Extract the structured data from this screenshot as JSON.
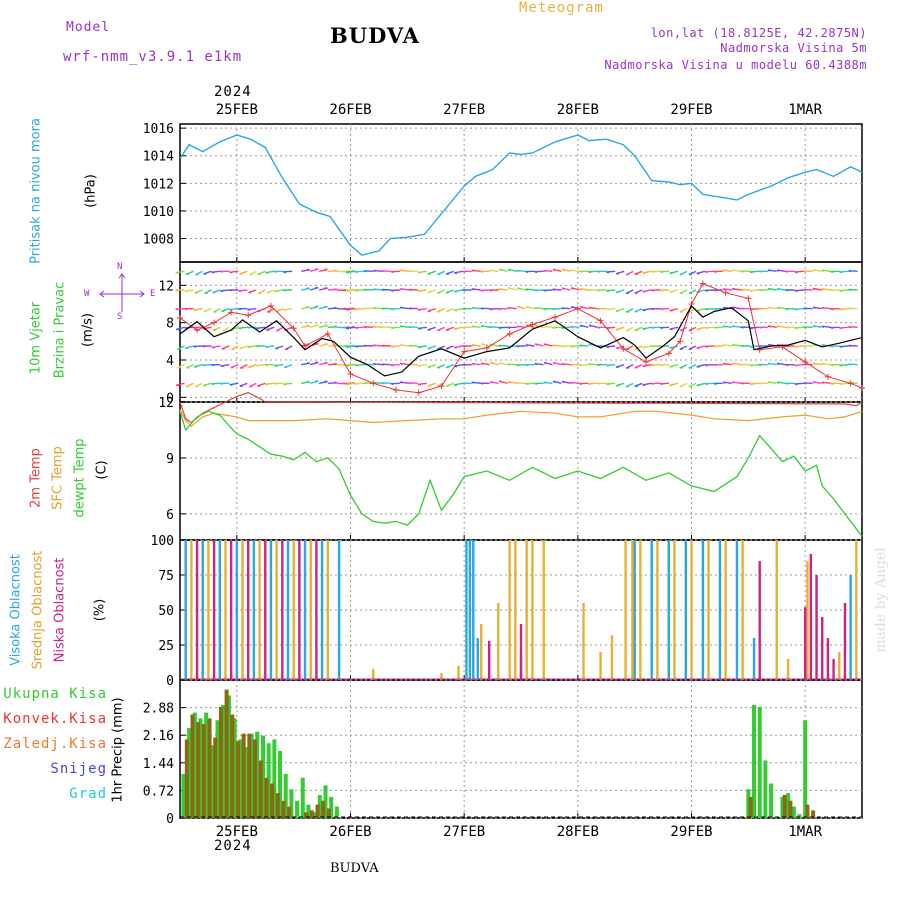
{
  "header": {
    "title": "BUDVA",
    "model_label": "Model",
    "model_name": "wrf-nmm_v3.9.1  e1km",
    "meteogram": "Meteogram",
    "lonlat": "lon,lat (18.8125E, 42.2875N)",
    "elev": "Nadmorska Visina 5m",
    "elev_model": "Nadmorska Visina u modelu 60.4388m",
    "year_top": "2024",
    "year_bottom": "2024",
    "footer": "BUDVA",
    "credit": "made by Angel"
  },
  "panel_labels": {
    "pressure": [
      "Pritisak na nivou mora",
      "(hPa)"
    ],
    "wind": [
      "10m Vjetar",
      "Brzina i Pravac",
      "(m/s)"
    ],
    "compass": {
      "n": "N",
      "s": "S",
      "w": "W",
      "e": "E"
    },
    "temp": [
      "2m Temp",
      "SFC Temp",
      "dewpt Temp",
      "(C)"
    ],
    "cloud": [
      "Visoka Oblacnost",
      "Srednja Oblacnost",
      "Niska Oblacnost",
      "(%)"
    ],
    "precip_axis": "1hr Precip (mm)",
    "precip_legend": [
      "Ukupna Kisa",
      "Konvek.Kisa",
      "Zaledj.Kisa",
      "Snijeg",
      "Grad"
    ]
  },
  "colors": {
    "pressure": "#29a8e0",
    "wind_speed": "#000000",
    "wind_gust": "#ee3333",
    "temp_2m": "#e84040",
    "temp_sfc": "#e8a030",
    "dewpoint": "#33cc33",
    "cloud_high": "#29a8e0",
    "cloud_mid": "#e8b030",
    "cloud_low": "#cc2288",
    "precip_total": "#33cc33",
    "precip_conv": "#8b6914",
    "title_purple": "#9933cc",
    "meteogram_orange": "#e8b040"
  },
  "chart_data": [
    {
      "type": "line",
      "id": "pressure",
      "x_unit": "days since 25FEB 00UTC",
      "x_ticks": [
        "25FEB",
        "26FEB",
        "27FEB",
        "28FEB",
        "29FEB",
        "1MAR"
      ],
      "xlim": [
        -0.5,
        5.5
      ],
      "ylim": [
        1006.3,
        1016.3
      ],
      "y_ticks": [
        1008,
        1010,
        1012,
        1014,
        1016
      ],
      "grid": true,
      "series": [
        {
          "name": "Pritisak na nivou mora",
          "x": [
            -0.5,
            -0.42,
            -0.3,
            -0.15,
            0.0,
            0.12,
            0.25,
            0.4,
            0.55,
            0.7,
            0.82,
            1.0,
            1.1,
            1.25,
            1.35,
            1.5,
            1.65,
            1.8,
            2.0,
            2.1,
            2.25,
            2.4,
            2.5,
            2.6,
            2.8,
            3.0,
            3.1,
            3.25,
            3.4,
            3.5,
            3.65,
            3.8,
            3.9,
            4.0,
            4.1,
            4.25,
            4.4,
            4.5,
            4.7,
            4.85,
            5.0,
            5.1,
            5.25,
            5.4,
            5.5
          ],
          "y": [
            1013.8,
            1014.8,
            1014.3,
            1015.0,
            1015.5,
            1015.2,
            1014.6,
            1012.4,
            1010.5,
            1009.9,
            1009.6,
            1007.5,
            1006.8,
            1007.1,
            1008.0,
            1008.1,
            1008.3,
            1009.8,
            1011.8,
            1012.5,
            1013.0,
            1014.2,
            1014.1,
            1014.2,
            1015.0,
            1015.5,
            1015.1,
            1015.2,
            1014.8,
            1014.0,
            1012.2,
            1012.1,
            1011.9,
            1012.0,
            1011.2,
            1011.0,
            1010.8,
            1011.2,
            1011.8,
            1012.4,
            1012.8,
            1013.0,
            1012.5,
            1013.2,
            1012.8
          ]
        }
      ]
    },
    {
      "type": "line",
      "id": "wind",
      "xlim": [
        -0.5,
        5.5
      ],
      "ylim": [
        -0.5,
        14.5
      ],
      "y_ticks": [
        0,
        4,
        8,
        12
      ],
      "grid": true,
      "arrow_rows": [
        1.5,
        3.5,
        5.5,
        7.5,
        9.5,
        11.5,
        13.5
      ],
      "series": [
        {
          "name": "speed",
          "x": [
            -0.5,
            -0.35,
            -0.2,
            -0.05,
            0.05,
            0.2,
            0.35,
            0.5,
            0.6,
            0.75,
            0.85,
            1.0,
            1.15,
            1.3,
            1.45,
            1.6,
            1.8,
            2.0,
            2.2,
            2.4,
            2.6,
            2.8,
            3.0,
            3.2,
            3.4,
            3.5,
            3.6,
            3.75,
            3.85,
            4.0,
            4.1,
            4.2,
            4.35,
            4.5,
            4.55,
            4.7,
            4.85,
            5.0,
            5.15,
            5.3,
            5.5
          ],
          "y": [
            6.8,
            8.1,
            6.5,
            7.2,
            8.3,
            7.0,
            8.2,
            6.4,
            5.1,
            6.3,
            6.0,
            4.3,
            3.5,
            2.3,
            2.7,
            4.4,
            5.2,
            4.2,
            4.9,
            5.3,
            7.3,
            8.2,
            6.5,
            5.3,
            6.4,
            5.6,
            4.2,
            5.5,
            6.5,
            9.8,
            8.6,
            9.2,
            9.6,
            8.2,
            5.1,
            5.5,
            5.6,
            6.1,
            5.4,
            5.8,
            6.4
          ]
        },
        {
          "name": "gust",
          "x": [
            -0.5,
            -0.35,
            -0.2,
            -0.05,
            0.1,
            0.3,
            0.5,
            0.6,
            0.8,
            1.0,
            1.2,
            1.4,
            1.6,
            1.8,
            2.0,
            2.2,
            2.4,
            2.6,
            2.8,
            3.0,
            3.2,
            3.4,
            3.6,
            3.8,
            3.9,
            4.0,
            4.1,
            4.3,
            4.5,
            4.6,
            4.8,
            5.0,
            5.2,
            5.4,
            5.5
          ],
          "y": [
            8.5,
            7.2,
            8.0,
            9.1,
            8.8,
            9.8,
            7.4,
            5.5,
            6.8,
            2.5,
            1.5,
            0.8,
            0.5,
            1.2,
            4.9,
            5.3,
            6.8,
            7.8,
            8.6,
            9.5,
            8.2,
            5.2,
            3.8,
            4.7,
            6.0,
            10.0,
            12.2,
            11.2,
            10.6,
            5.1,
            5.4,
            3.8,
            2.2,
            1.5,
            1.0
          ]
        }
      ]
    },
    {
      "type": "line",
      "id": "temperature",
      "xlim": [
        -0.5,
        5.5
      ],
      "ylim": [
        4.6,
        12.0
      ],
      "y_ticks": [
        6,
        9,
        12
      ],
      "grid": true,
      "series": [
        {
          "name": "2m Temp",
          "x": [
            -0.5,
            -0.45,
            -0.4,
            -0.3,
            -0.2,
            -0.1,
            0.0,
            0.1,
            0.2,
            0.25,
            5.35,
            5.45,
            5.5
          ],
          "y": [
            12.0,
            11.1,
            10.9,
            11.4,
            11.7,
            12.0,
            12.3,
            12.5,
            12.2,
            12.0,
            11.9,
            11.8,
            12.0
          ]
        },
        {
          "name": "SFC Temp",
          "x": [
            -0.5,
            -0.45,
            -0.4,
            -0.3,
            -0.2,
            -0.1,
            0.0,
            0.1,
            0.3,
            0.5,
            0.8,
            1.0,
            1.2,
            1.5,
            1.8,
            2.0,
            2.2,
            2.5,
            2.8,
            3.0,
            3.2,
            3.5,
            3.7,
            4.0,
            4.2,
            4.5,
            4.8,
            5.0,
            5.2,
            5.35,
            5.5
          ],
          "y": [
            11.6,
            11.0,
            10.7,
            11.2,
            11.4,
            11.3,
            11.2,
            11.0,
            11.0,
            11.0,
            11.1,
            11.0,
            10.9,
            11.0,
            11.1,
            11.1,
            11.3,
            11.5,
            11.4,
            11.2,
            11.2,
            11.5,
            11.5,
            11.3,
            11.1,
            11.0,
            11.2,
            11.3,
            11.1,
            11.2,
            11.5
          ]
        },
        {
          "name": "dewpt Temp",
          "x": [
            -0.5,
            -0.45,
            -0.35,
            -0.25,
            -0.15,
            -0.05,
            0.0,
            0.1,
            0.2,
            0.3,
            0.4,
            0.5,
            0.6,
            0.7,
            0.8,
            0.9,
            1.0,
            1.1,
            1.2,
            1.3,
            1.4,
            1.5,
            1.6,
            1.7,
            1.8,
            1.9,
            2.0,
            2.2,
            2.4,
            2.6,
            2.8,
            3.0,
            3.2,
            3.4,
            3.6,
            3.8,
            4.0,
            4.2,
            4.4,
            4.5,
            4.6,
            4.7,
            4.8,
            4.9,
            5.0,
            5.1,
            5.15,
            5.25,
            5.35,
            5.45,
            5.5
          ],
          "y": [
            11.5,
            10.5,
            11.2,
            11.5,
            11.3,
            10.6,
            10.3,
            10.0,
            9.6,
            9.2,
            9.1,
            8.9,
            9.3,
            8.8,
            9.0,
            8.4,
            7.0,
            6.0,
            5.6,
            5.5,
            5.6,
            5.4,
            6.0,
            7.8,
            6.2,
            7.0,
            8.0,
            8.3,
            7.8,
            8.5,
            7.9,
            8.3,
            7.9,
            8.5,
            7.8,
            8.2,
            7.5,
            7.2,
            8.0,
            9.0,
            10.2,
            9.5,
            8.8,
            9.1,
            8.3,
            8.6,
            7.5,
            6.8,
            6.0,
            5.2,
            4.8
          ]
        }
      ]
    },
    {
      "type": "bar",
      "id": "cloud",
      "xlim": [
        -0.5,
        5.5
      ],
      "ylim": [
        0,
        100
      ],
      "y_ticks": [
        0,
        25,
        50,
        75,
        100
      ],
      "grid": true,
      "series": [
        {
          "name": "Visoka Oblacnost",
          "x": [
            -0.45,
            -0.3,
            -0.15,
            0.0,
            0.15,
            0.3,
            0.45,
            0.6,
            0.75,
            0.9,
            2.02,
            2.05,
            2.08,
            2.12,
            2.5,
            3.5,
            3.65,
            3.8,
            3.95,
            4.1,
            4.25,
            4.4,
            4.55,
            5.0,
            5.4
          ],
          "y": [
            100,
            100,
            100,
            100,
            100,
            100,
            100,
            100,
            100,
            100,
            100,
            100,
            100,
            30,
            20,
            100,
            100,
            100,
            100,
            100,
            100,
            100,
            30,
            15,
            75
          ]
        },
        {
          "name": "Srednja Oblacnost",
          "x": [
            -0.4,
            -0.25,
            -0.1,
            0.05,
            0.2,
            0.35,
            0.5,
            0.65,
            0.8,
            1.2,
            1.8,
            1.95,
            2.15,
            2.3,
            2.4,
            2.45,
            2.55,
            2.6,
            2.7,
            3.05,
            3.2,
            3.3,
            3.42,
            3.48,
            3.55,
            3.7,
            3.85,
            4.0,
            4.15,
            4.3,
            4.45,
            4.6,
            4.75,
            4.85,
            5.02,
            5.3,
            5.45
          ],
          "y": [
            100,
            100,
            100,
            100,
            100,
            100,
            100,
            100,
            100,
            8,
            5,
            10,
            40,
            55,
            100,
            100,
            100,
            100,
            100,
            55,
            20,
            32,
            100,
            100,
            100,
            100,
            100,
            100,
            100,
            100,
            100,
            15,
            100,
            15,
            85,
            20,
            100
          ]
        },
        {
          "name": "Niska Oblacnost",
          "x": [
            -0.35,
            -0.2,
            -0.05,
            0.1,
            0.25,
            0.4,
            0.55,
            0.7,
            2.22,
            2.5,
            4.6,
            5.0,
            5.05,
            5.1,
            5.15,
            5.2,
            5.25,
            5.35
          ],
          "y": [
            100,
            100,
            100,
            100,
            100,
            100,
            100,
            100,
            28,
            40,
            85,
            52,
            90,
            75,
            45,
            30,
            15,
            55
          ]
        }
      ]
    },
    {
      "type": "bar",
      "id": "precipitation",
      "xlim": [
        -0.5,
        5.5
      ],
      "ylim": [
        0,
        3.6
      ],
      "y_ticks": [
        0,
        0.72,
        1.44,
        2.16,
        2.88
      ],
      "grid": true,
      "series": [
        {
          "name": "Ukupna Kisa",
          "x": [
            -0.47,
            -0.42,
            -0.37,
            -0.32,
            -0.27,
            -0.22,
            -0.17,
            -0.12,
            -0.07,
            -0.02,
            0.03,
            0.08,
            0.13,
            0.18,
            0.23,
            0.28,
            0.33,
            0.38,
            0.43,
            0.48,
            0.53,
            0.58,
            0.63,
            0.68,
            0.73,
            0.78,
            0.83,
            0.88,
            4.5,
            4.55,
            4.6,
            4.65,
            4.7,
            4.8,
            4.85,
            4.9,
            4.95,
            5.0
          ],
          "y": [
            1.15,
            2.35,
            2.75,
            2.6,
            2.75,
            1.9,
            2.55,
            2.95,
            3.2,
            2.6,
            2.05,
            1.85,
            2.2,
            2.25,
            2.15,
            1.95,
            2.05,
            1.75,
            1.15,
            0.75,
            0.45,
            1.05,
            0.35,
            0.15,
            0.6,
            0.85,
            0.55,
            0.3,
            0.75,
            2.95,
            2.9,
            1.5,
            0.9,
            0.55,
            0.65,
            0.3,
            0.1,
            2.55
          ]
        },
        {
          "name": "Konvek.Kisa",
          "x": [
            -0.44,
            -0.39,
            -0.34,
            -0.29,
            -0.24,
            -0.19,
            -0.14,
            -0.09,
            -0.04,
            0.01,
            0.06,
            0.11,
            0.16,
            0.21,
            0.26,
            0.31,
            0.36,
            0.41,
            0.46,
            0.61,
            0.66,
            0.71,
            0.76,
            0.81,
            4.52,
            4.82,
            4.87,
            5.02,
            5.07
          ],
          "y": [
            2.05,
            2.7,
            2.5,
            2.45,
            2.6,
            2.1,
            2.9,
            3.35,
            2.7,
            2.0,
            2.2,
            2.2,
            2.05,
            1.5,
            1.05,
            0.9,
            0.65,
            0.45,
            0.3,
            0.15,
            0.2,
            0.35,
            0.45,
            0.25,
            0.55,
            0.6,
            0.45,
            0.35,
            0.2
          ]
        }
      ]
    }
  ]
}
